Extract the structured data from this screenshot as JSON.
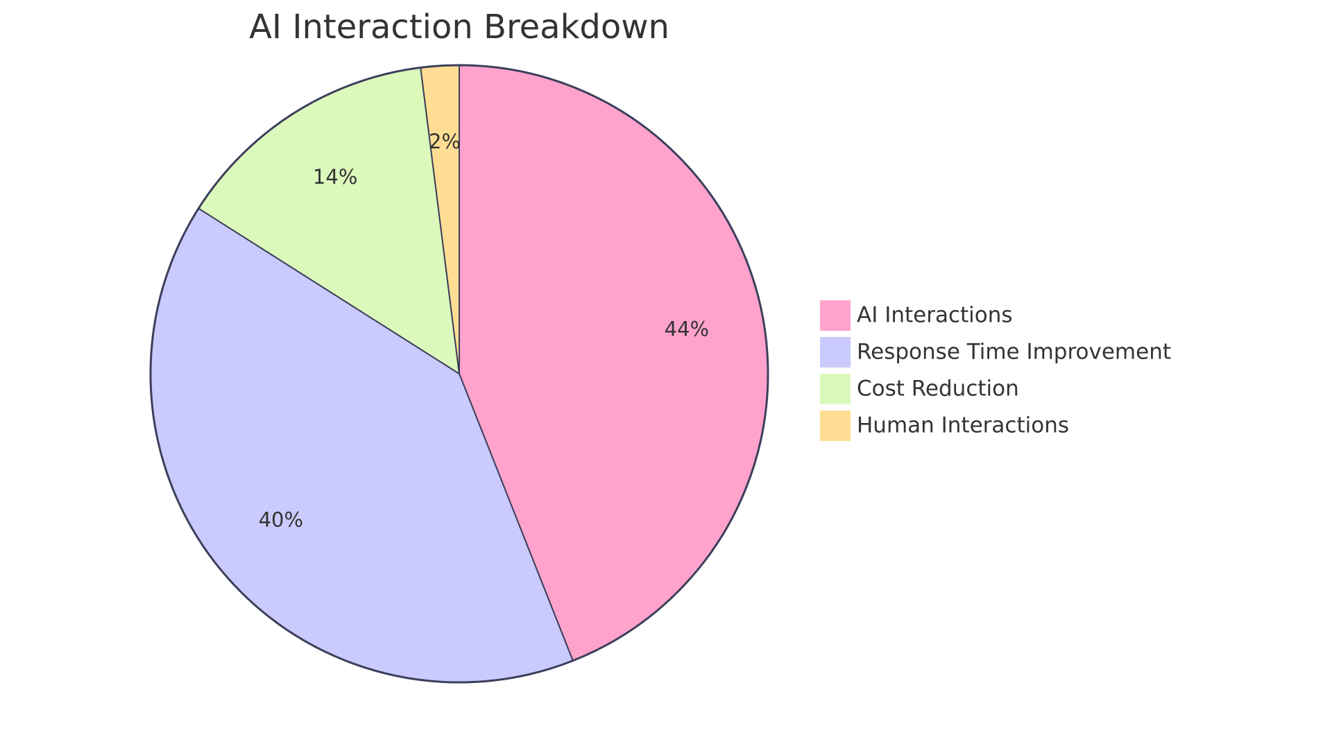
{
  "chart_data": {
    "type": "pie",
    "title": "AI Interaction Breakdown",
    "categories": [
      "AI Interactions",
      "Response Time Improvement",
      "Cost Reduction",
      "Human Interactions"
    ],
    "values": [
      44,
      40,
      14,
      2
    ],
    "value_labels": [
      "44%",
      "40%",
      "14%",
      "2%"
    ],
    "colors": [
      "#ffa3cd",
      "#cacaff",
      "#dcf9bc",
      "#ffde94"
    ],
    "legend": "right"
  }
}
